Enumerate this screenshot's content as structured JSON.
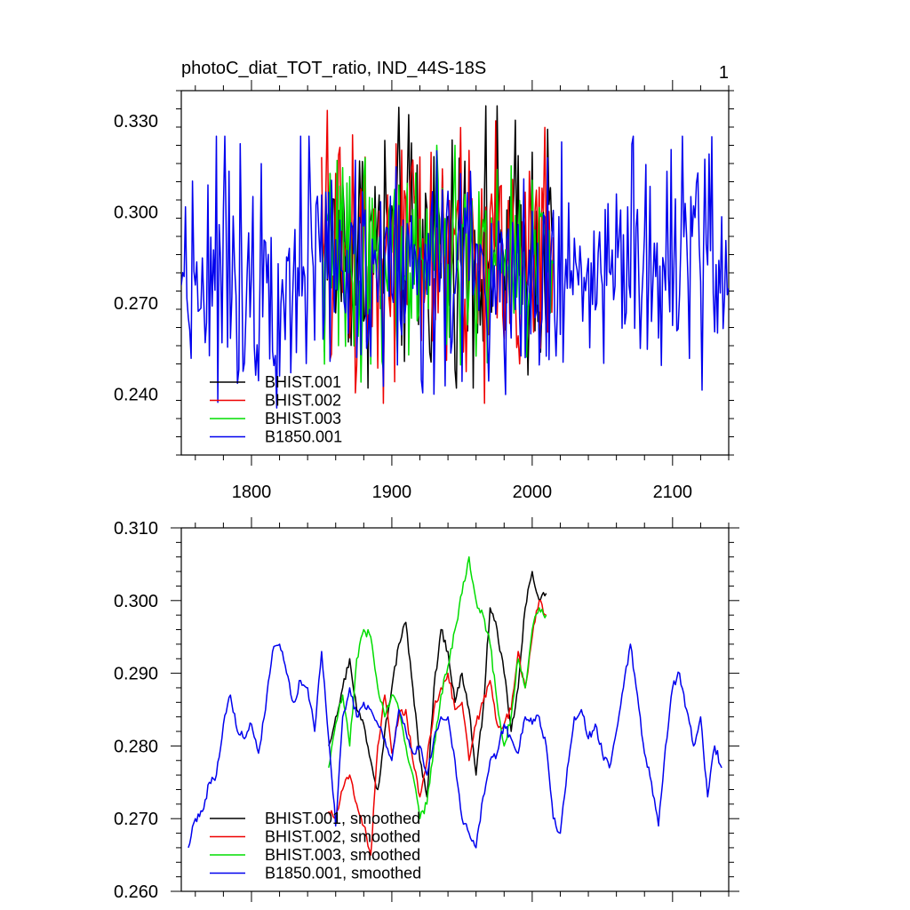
{
  "figure": {
    "title": "photoC_diat_TOT_ratio, IND_44S-18S",
    "panel_number": "1"
  },
  "colors": {
    "BHIST.001": "#000000",
    "BHIST.002": "#ee0000",
    "BHIST.003": "#00dd00",
    "B1850.001": "#0000ee"
  },
  "chart_data": [
    {
      "type": "line",
      "panel": "top",
      "title": "photoC_diat_TOT_ratio, IND_44S-18S",
      "xlim": [
        1750,
        2140
      ],
      "ylim": [
        0.22,
        0.34
      ],
      "x_ticks": [
        1800,
        1900,
        2000,
        2100
      ],
      "x_tick_labels": [
        "1800",
        "1900",
        "2000",
        "2100"
      ],
      "y_ticks": [
        0.24,
        0.27,
        0.3,
        0.33
      ],
      "y_tick_labels": [
        "0.240",
        "0.270",
        "0.300",
        "0.330"
      ],
      "legend": [
        "BHIST.001",
        "BHIST.002",
        "BHIST.003",
        "B1850.001"
      ],
      "legend_position": "bottom-left",
      "series": [
        {
          "name": "BHIST.001",
          "x_start": 1850,
          "x_end": 2015,
          "min": 0.242,
          "max": 0.335,
          "mean": 0.288
        },
        {
          "name": "BHIST.002",
          "x_start": 1850,
          "x_end": 2015,
          "min": 0.237,
          "max": 0.338,
          "mean": 0.286
        },
        {
          "name": "BHIST.003",
          "x_start": 1850,
          "x_end": 2015,
          "min": 0.244,
          "max": 0.322,
          "mean": 0.284
        },
        {
          "name": "B1850.001",
          "x_start": 1750,
          "x_end": 2140,
          "min": 0.234,
          "max": 0.325,
          "mean": 0.282
        }
      ]
    },
    {
      "type": "line",
      "panel": "bottom",
      "xlim": [
        1750,
        2140
      ],
      "ylim": [
        0.26,
        0.31
      ],
      "x_ticks": [
        1800,
        1900,
        2000,
        2100
      ],
      "y_ticks": [
        0.26,
        0.27,
        0.28,
        0.29,
        0.3,
        0.31
      ],
      "y_tick_labels": [
        "0.260",
        "0.270",
        "0.280",
        "0.290",
        "0.300",
        "0.310"
      ],
      "legend": [
        "BHIST.001, smoothed",
        "BHIST.002, smoothed",
        "BHIST.003, smoothed",
        "B1850.001, smoothed"
      ],
      "legend_position": "bottom-left",
      "series": [
        {
          "name": "BHIST.001, smoothed",
          "x": [
            1855,
            1860,
            1865,
            1870,
            1875,
            1880,
            1885,
            1890,
            1895,
            1900,
            1905,
            1910,
            1915,
            1920,
            1925,
            1930,
            1935,
            1940,
            1945,
            1950,
            1955,
            1960,
            1965,
            1970,
            1975,
            1980,
            1985,
            1990,
            1995,
            2000,
            2005,
            2010
          ],
          "values": [
            0.28,
            0.284,
            0.288,
            0.292,
            0.285,
            0.283,
            0.278,
            0.274,
            0.282,
            0.288,
            0.294,
            0.297,
            0.288,
            0.278,
            0.273,
            0.288,
            0.296,
            0.293,
            0.286,
            0.29,
            0.285,
            0.276,
            0.285,
            0.299,
            0.296,
            0.29,
            0.282,
            0.288,
            0.299,
            0.304,
            0.3,
            0.301
          ]
        },
        {
          "name": "BHIST.002, smoothed",
          "x": [
            1855,
            1860,
            1865,
            1870,
            1875,
            1880,
            1885,
            1890,
            1895,
            1900,
            1905,
            1910,
            1915,
            1920,
            1925,
            1930,
            1935,
            1940,
            1945,
            1950,
            1955,
            1960,
            1965,
            1970,
            1975,
            1980,
            1985,
            1990,
            1995,
            2000,
            2005,
            2010
          ],
          "values": [
            0.271,
            0.27,
            0.274,
            0.276,
            0.272,
            0.269,
            0.265,
            0.28,
            0.287,
            0.279,
            0.284,
            0.285,
            0.278,
            0.273,
            0.278,
            0.285,
            0.288,
            0.29,
            0.285,
            0.286,
            0.278,
            0.283,
            0.286,
            0.289,
            0.283,
            0.283,
            0.285,
            0.293,
            0.288,
            0.295,
            0.3,
            0.298
          ]
        },
        {
          "name": "BHIST.003, smoothed",
          "x": [
            1855,
            1860,
            1865,
            1870,
            1875,
            1880,
            1885,
            1890,
            1895,
            1900,
            1905,
            1910,
            1915,
            1920,
            1925,
            1930,
            1935,
            1940,
            1945,
            1950,
            1955,
            1960,
            1965,
            1970,
            1975,
            1980,
            1985,
            1990,
            1995,
            2000,
            2005,
            2010
          ],
          "values": [
            0.277,
            0.283,
            0.287,
            0.28,
            0.292,
            0.296,
            0.295,
            0.288,
            0.284,
            0.287,
            0.285,
            0.28,
            0.276,
            0.27,
            0.272,
            0.28,
            0.287,
            0.291,
            0.296,
            0.301,
            0.306,
            0.3,
            0.298,
            0.294,
            0.286,
            0.28,
            0.284,
            0.292,
            0.288,
            0.296,
            0.299,
            0.298
          ]
        },
        {
          "name": "B1850.001, smoothed",
          "x": [
            1755,
            1760,
            1765,
            1770,
            1775,
            1780,
            1785,
            1790,
            1795,
            1800,
            1805,
            1810,
            1815,
            1820,
            1825,
            1830,
            1835,
            1840,
            1845,
            1850,
            1855,
            1860,
            1865,
            1870,
            1875,
            1880,
            1885,
            1890,
            1895,
            1900,
            1905,
            1910,
            1915,
            1920,
            1925,
            1930,
            1935,
            1940,
            1945,
            1950,
            1955,
            1960,
            1965,
            1970,
            1975,
            1980,
            1985,
            1990,
            1995,
            2000,
            2005,
            2010,
            2015,
            2020,
            2025,
            2030,
            2035,
            2040,
            2045,
            2050,
            2055,
            2060,
            2065,
            2070,
            2075,
            2080,
            2085,
            2090,
            2095,
            2100,
            2105,
            2110,
            2115,
            2120,
            2125,
            2130,
            2135
          ],
          "values": [
            0.266,
            0.27,
            0.271,
            0.275,
            0.276,
            0.283,
            0.287,
            0.282,
            0.281,
            0.283,
            0.279,
            0.285,
            0.293,
            0.294,
            0.29,
            0.286,
            0.289,
            0.288,
            0.282,
            0.293,
            0.281,
            0.269,
            0.284,
            0.288,
            0.284,
            0.286,
            0.285,
            0.283,
            0.281,
            0.278,
            0.285,
            0.282,
            0.279,
            0.28,
            0.276,
            0.281,
            0.284,
            0.284,
            0.278,
            0.27,
            0.268,
            0.266,
            0.273,
            0.278,
            0.279,
            0.283,
            0.281,
            0.279,
            0.284,
            0.283,
            0.284,
            0.28,
            0.27,
            0.268,
            0.277,
            0.284,
            0.285,
            0.281,
            0.283,
            0.279,
            0.277,
            0.282,
            0.288,
            0.294,
            0.287,
            0.279,
            0.275,
            0.269,
            0.28,
            0.288,
            0.29,
            0.285,
            0.28,
            0.284,
            0.273,
            0.28,
            0.277
          ]
        }
      ]
    }
  ]
}
